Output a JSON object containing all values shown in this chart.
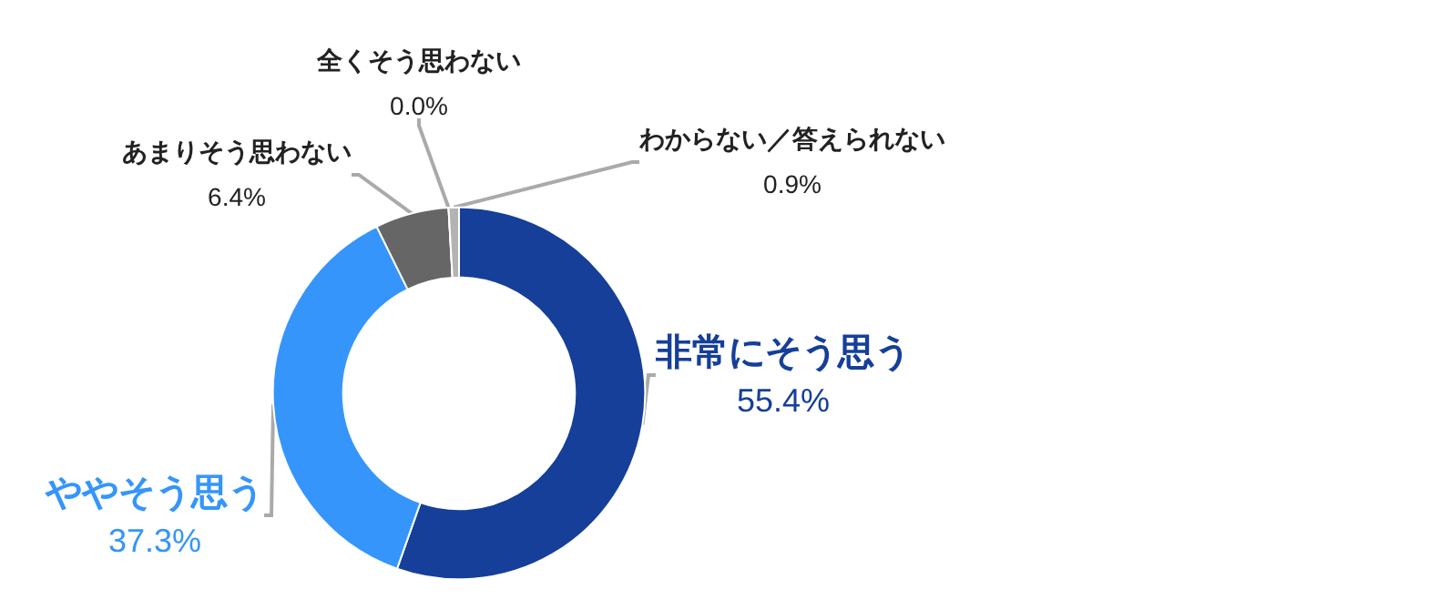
{
  "chart_data": {
    "type": "donut",
    "categories": [
      "非常にそう思う",
      "ややそう思う",
      "あまりそう思わない",
      "全くそう思わない",
      "わからない／答えられない"
    ],
    "values": [
      55.4,
      37.3,
      6.4,
      0.0,
      0.9
    ],
    "value_labels": [
      "55.4%",
      "37.3%",
      "6.4%",
      "0.0%",
      "0.9%"
    ],
    "colors": [
      "#153f99",
      "#3595fb",
      "#666666",
      "#999999",
      "#b3b3b3"
    ],
    "legend": false
  }
}
